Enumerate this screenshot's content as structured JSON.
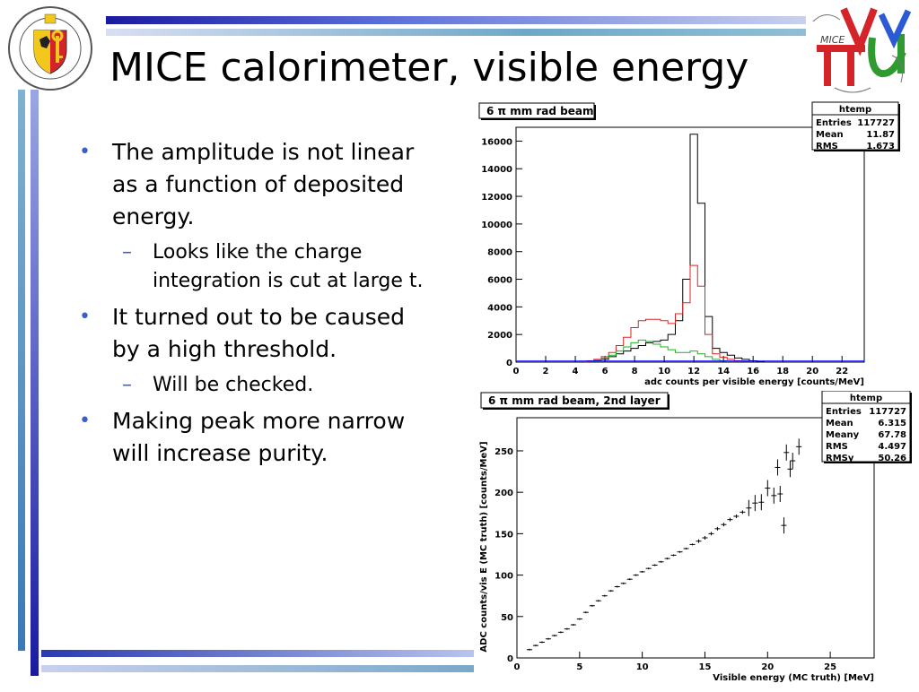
{
  "slide": {
    "title": "MICE calorimeter, visible energy",
    "bullets": [
      {
        "text": "The amplitude is not linear as a function of deposited energy.",
        "sub": "Looks like the charge integration is cut at large t."
      },
      {
        "text": "It turned out to be caused by a high threshold.",
        "sub": "Will be checked."
      },
      {
        "text": "Making peak more narrow will increase purity.",
        "sub": null
      }
    ]
  },
  "logos": {
    "left": {
      "name": "university-of-geneva-seal",
      "text": "SCHOLA GENEVENSIS",
      "year": "1559",
      "color": "#d4242a"
    },
    "right": {
      "name": "mice-logo",
      "text": "MICE",
      "colors": [
        "#d4242a",
        "#2a5bd4",
        "#2f9a2f"
      ]
    }
  },
  "colors": {
    "accent": "#3a5fcd",
    "series_black": "#000000",
    "series_red": "#e02020",
    "series_green": "#20b020",
    "series_blue": "#0000ff"
  },
  "chart_data": [
    {
      "type": "line",
      "title": "6 π mm rad beam",
      "xlabel": "adc counts per visible energy [counts/MeV]",
      "ylabel": "",
      "xlim": [
        0,
        23.5
      ],
      "ylim": [
        0,
        17000
      ],
      "xticks": [
        0,
        2,
        4,
        6,
        8,
        10,
        12,
        14,
        16,
        18,
        20,
        22
      ],
      "yticks": [
        0,
        2000,
        4000,
        6000,
        8000,
        10000,
        12000,
        14000,
        16000
      ],
      "stats": {
        "name": "htemp",
        "rows": [
          [
            "Entries",
            "117727"
          ],
          [
            "Mean",
            "11.87"
          ],
          [
            "RMS",
            "1.673"
          ]
        ]
      },
      "series": [
        {
          "color": "black",
          "step": 0.5,
          "x": [
            5.5,
            6.0,
            6.5,
            7.0,
            7.5,
            8.0,
            8.5,
            9.0,
            9.5,
            10.0,
            10.5,
            11.0,
            11.5,
            12.0,
            12.5,
            13.0,
            13.5,
            14.0,
            14.5,
            15.0,
            15.5,
            16.0,
            16.5
          ],
          "y": [
            100,
            200,
            400,
            600,
            800,
            1000,
            1200,
            1400,
            1500,
            1600,
            2000,
            3000,
            6000,
            16500,
            11500,
            3300,
            1000,
            700,
            500,
            300,
            200,
            100,
            50
          ]
        },
        {
          "color": "red",
          "step": 0.5,
          "x": [
            5.0,
            5.5,
            6.0,
            6.5,
            7.0,
            7.5,
            8.0,
            8.5,
            9.0,
            9.5,
            10.0,
            10.5,
            11.0,
            11.5,
            12.0,
            12.5,
            13.0,
            13.5,
            14.0,
            14.5,
            15.0,
            15.5
          ],
          "y": [
            100,
            200,
            400,
            700,
            1200,
            1800,
            2500,
            3000,
            3100,
            3100,
            3000,
            2800,
            3500,
            4300,
            7000,
            5500,
            2000,
            600,
            350,
            200,
            100,
            50
          ]
        },
        {
          "color": "green",
          "step": 0.5,
          "x": [
            5.0,
            5.5,
            6.0,
            6.5,
            7.0,
            7.5,
            8.0,
            8.5,
            9.0,
            9.5,
            10.0,
            10.5,
            11.0,
            11.5,
            12.0,
            12.5,
            13.0,
            13.5,
            14.0
          ],
          "y": [
            50,
            150,
            300,
            500,
            800,
            1100,
            1400,
            1600,
            1500,
            1300,
            1100,
            900,
            700,
            700,
            800,
            600,
            400,
            200,
            100
          ]
        },
        {
          "color": "blue",
          "step": 0.5,
          "x": [
            0,
            23.5
          ],
          "y": [
            80,
            80
          ]
        }
      ]
    },
    {
      "type": "scatter",
      "title": "6 π mm rad beam, 2nd layer",
      "xlabel": "Visible energy (MC truth) [MeV]",
      "ylabel": "ADC counts/vis E (MC truth) [counts/MeV]",
      "xlim": [
        0,
        28.5
      ],
      "ylim": [
        0,
        290
      ],
      "xticks": [
        0,
        5,
        10,
        15,
        20,
        25
      ],
      "yticks": [
        0,
        50,
        100,
        150,
        200,
        250
      ],
      "stats": {
        "name": "htemp",
        "rows": [
          [
            "Entries",
            "117727"
          ],
          [
            "Mean",
            "6.315"
          ],
          [
            "Meany",
            "67.78"
          ],
          [
            "RMS",
            "4.497"
          ],
          [
            "RMSy",
            "50.26"
          ]
        ]
      },
      "points": [
        [
          1.0,
          10
        ],
        [
          1.5,
          15
        ],
        [
          2.0,
          19
        ],
        [
          2.5,
          23
        ],
        [
          3.0,
          27
        ],
        [
          3.5,
          31
        ],
        [
          4.0,
          35
        ],
        [
          4.5,
          40
        ],
        [
          5.0,
          47
        ],
        [
          5.5,
          55
        ],
        [
          6.0,
          63
        ],
        [
          6.5,
          69
        ],
        [
          7.0,
          75
        ],
        [
          7.5,
          81
        ],
        [
          8.0,
          86
        ],
        [
          8.5,
          90
        ],
        [
          9.0,
          95
        ],
        [
          9.5,
          100
        ],
        [
          10.0,
          104
        ],
        [
          10.5,
          108
        ],
        [
          11.0,
          112
        ],
        [
          11.5,
          116
        ],
        [
          12.0,
          120
        ],
        [
          12.5,
          124
        ],
        [
          13.0,
          128
        ],
        [
          13.5,
          132
        ],
        [
          14.0,
          137
        ],
        [
          14.5,
          141
        ],
        [
          15.0,
          145
        ],
        [
          15.5,
          150
        ],
        [
          16.0,
          156
        ],
        [
          16.5,
          161
        ],
        [
          17.0,
          167
        ],
        [
          17.5,
          171
        ],
        [
          18.0,
          176
        ],
        [
          18.5,
          181
        ],
        [
          19.0,
          187
        ],
        [
          19.5,
          188
        ],
        [
          20.0,
          205
        ],
        [
          20.5,
          196
        ],
        [
          21.0,
          198
        ],
        [
          21.3,
          160
        ],
        [
          21.5,
          248
        ],
        [
          21.8,
          228
        ],
        [
          22.0,
          238
        ],
        [
          22.5,
          255
        ],
        [
          20.8,
          230
        ]
      ]
    }
  ]
}
